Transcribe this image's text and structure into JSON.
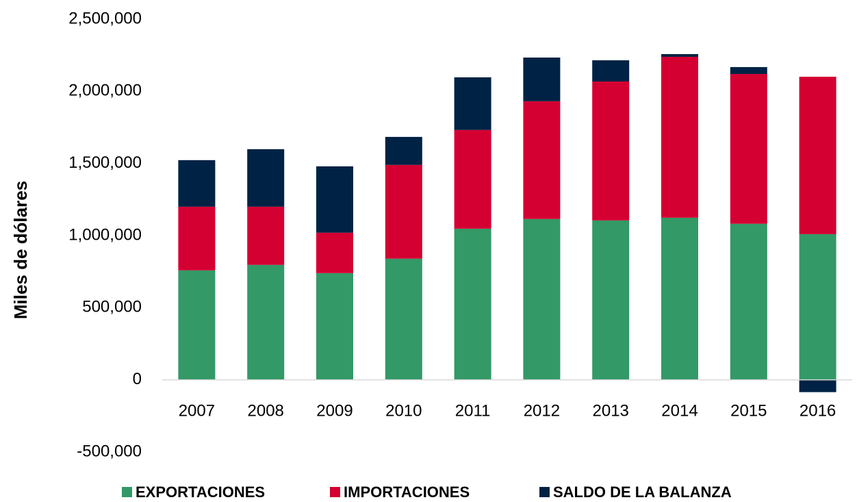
{
  "chart_data": {
    "type": "stacked_bar",
    "y_label": "Miles de dólares",
    "categories": [
      "2007",
      "2008",
      "2009",
      "2010",
      "2011",
      "2012",
      "2013",
      "2014",
      "2015",
      "2016"
    ],
    "series": [
      {
        "name": "EXPORTACIONES",
        "color": "#339966",
        "values": [
          759000,
          797000,
          740000,
          840000,
          1048000,
          1115000,
          1105000,
          1124000,
          1082000,
          1010000
        ]
      },
      {
        "name": "IMPORTACIONES",
        "color": "#d40032",
        "values": [
          441000,
          403000,
          280000,
          650000,
          684000,
          816000,
          963000,
          1115000,
          1038000,
          1091000
        ]
      },
      {
        "name": "SALDO DE LA BALANZA",
        "color": "#002244",
        "values": [
          323000,
          399000,
          460000,
          194000,
          365000,
          303000,
          147000,
          19000,
          48000,
          -85000
        ]
      }
    ],
    "ylim": [
      -500000,
      2500000
    ],
    "yticks": [
      {
        "value": -500000,
        "label": "-500,000"
      },
      0,
      {
        "value": 500000,
        "label": "500,000"
      },
      {
        "value": 1000000,
        "label": "1,000,000"
      },
      {
        "value": 1500000,
        "label": "1,500,000"
      },
      {
        "value": 2000000,
        "label": "2,000,000"
      },
      {
        "value": 2500000,
        "label": "2,500,000"
      }
    ],
    "grid": false,
    "legend": "bottom"
  }
}
